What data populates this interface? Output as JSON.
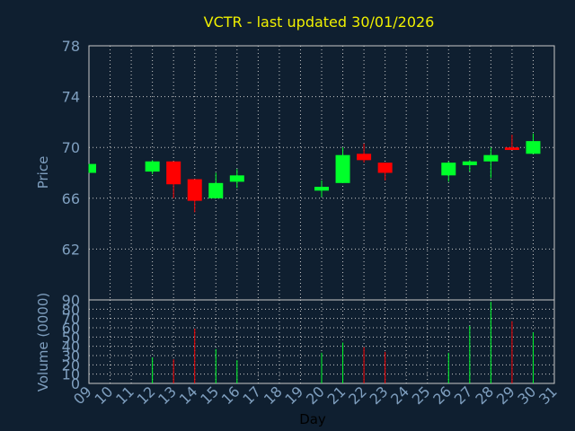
{
  "chart_data": [
    {
      "type": "candlestick",
      "title": "VCTR - last updated 30/01/2026",
      "ylabel": "Price",
      "ylim": [
        58,
        78
      ],
      "yticks": [
        62,
        66,
        70,
        74,
        78
      ],
      "xticks": [
        "09",
        "10",
        "11",
        "12",
        "13",
        "14",
        "15",
        "16",
        "17",
        "18",
        "19",
        "20",
        "21",
        "22",
        "23",
        "24",
        "25",
        "26",
        "27",
        "28",
        "29",
        "30",
        "31"
      ],
      "grid": true,
      "colors": {
        "up": "#00ff2a",
        "down": "#ff0000",
        "grid": "#c8c8c8",
        "title": "#f0f000",
        "tick": "#7f9fbf",
        "background": "#0f1f30"
      },
      "candles": [
        {
          "day": 9,
          "open": 68.0,
          "close": 68.7,
          "high": 68.7,
          "low": 68.0
        },
        {
          "day": 12,
          "open": 68.1,
          "close": 68.9,
          "high": 69.0,
          "low": 67.9
        },
        {
          "day": 13,
          "open": 68.9,
          "close": 67.1,
          "high": 68.9,
          "low": 66.0
        },
        {
          "day": 14,
          "open": 67.5,
          "close": 65.8,
          "high": 67.5,
          "low": 64.9
        },
        {
          "day": 15,
          "open": 66.0,
          "close": 67.2,
          "high": 68.0,
          "low": 66.0
        },
        {
          "day": 16,
          "open": 67.3,
          "close": 67.8,
          "high": 68.3,
          "low": 66.8
        },
        {
          "day": 20,
          "open": 66.6,
          "close": 66.9,
          "high": 67.4,
          "low": 66.1
        },
        {
          "day": 21,
          "open": 67.2,
          "close": 69.4,
          "high": 70.0,
          "low": 67.2
        },
        {
          "day": 22,
          "open": 69.5,
          "close": 69.0,
          "high": 70.3,
          "low": 68.8
        },
        {
          "day": 23,
          "open": 68.8,
          "close": 68.0,
          "high": 68.8,
          "low": 67.4
        },
        {
          "day": 26,
          "open": 67.8,
          "close": 68.8,
          "high": 68.9,
          "low": 67.3
        },
        {
          "day": 27,
          "open": 68.6,
          "close": 68.9,
          "high": 69.0,
          "low": 68.1
        },
        {
          "day": 28,
          "open": 68.9,
          "close": 69.4,
          "high": 70.0,
          "low": 67.6
        },
        {
          "day": 29,
          "open": 70.0,
          "close": 69.8,
          "high": 71.0,
          "low": 69.8
        },
        {
          "day": 30,
          "open": 69.5,
          "close": 70.5,
          "high": 71.1,
          "low": 69.5
        }
      ]
    },
    {
      "type": "bar",
      "ylabel": "Volume (0000)",
      "xlabel": "Day",
      "ylim": [
        0,
        90
      ],
      "yticks": [
        0,
        10,
        20,
        30,
        40,
        50,
        60,
        70,
        80,
        90
      ],
      "volumes": [
        {
          "day": 12,
          "value": 28,
          "direction": "up"
        },
        {
          "day": 13,
          "value": 26,
          "direction": "down"
        },
        {
          "day": 14,
          "value": 59,
          "direction": "down"
        },
        {
          "day": 15,
          "value": 37,
          "direction": "up"
        },
        {
          "day": 16,
          "value": 25,
          "direction": "up"
        },
        {
          "day": 20,
          "value": 33,
          "direction": "up"
        },
        {
          "day": 21,
          "value": 44,
          "direction": "up"
        },
        {
          "day": 22,
          "value": 39,
          "direction": "down"
        },
        {
          "day": 23,
          "value": 34,
          "direction": "down"
        },
        {
          "day": 26,
          "value": 33,
          "direction": "up"
        },
        {
          "day": 27,
          "value": 62,
          "direction": "up"
        },
        {
          "day": 28,
          "value": 88,
          "direction": "up"
        },
        {
          "day": 29,
          "value": 67,
          "direction": "down"
        },
        {
          "day": 30,
          "value": 55,
          "direction": "up"
        }
      ]
    }
  ]
}
